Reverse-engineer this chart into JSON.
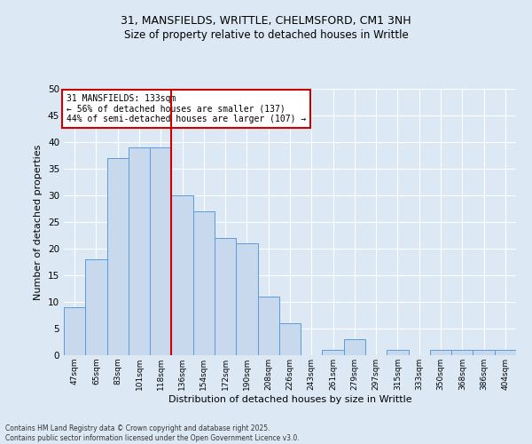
{
  "title_line1": "31, MANSFIELDS, WRITTLE, CHELMSFORD, CM1 3NH",
  "title_line2": "Size of property relative to detached houses in Writtle",
  "xlabel": "Distribution of detached houses by size in Writtle",
  "ylabel": "Number of detached properties",
  "categories": [
    "47sqm",
    "65sqm",
    "83sqm",
    "101sqm",
    "118sqm",
    "136sqm",
    "154sqm",
    "172sqm",
    "190sqm",
    "208sqm",
    "226sqm",
    "243sqm",
    "261sqm",
    "279sqm",
    "297sqm",
    "315sqm",
    "333sqm",
    "350sqm",
    "368sqm",
    "386sqm",
    "404sqm"
  ],
  "values": [
    9,
    18,
    37,
    39,
    39,
    30,
    27,
    22,
    21,
    11,
    6,
    0,
    1,
    3,
    0,
    1,
    0,
    1,
    1,
    1,
    1
  ],
  "bar_color": "#c8d9ed",
  "bar_edge_color": "#5b9bd5",
  "vline_index": 5,
  "vline_color": "#cc0000",
  "annotation_text_line1": "31 MANSFIELDS: 133sqm",
  "annotation_text_line2": "← 56% of detached houses are smaller (137)",
  "annotation_text_line3": "44% of semi-detached houses are larger (107) →",
  "annotation_box_facecolor": "#ffffff",
  "annotation_box_edgecolor": "#cc0000",
  "background_color": "#dce9f5",
  "plot_bg_color": "#dce9f5",
  "grid_color": "#ffffff",
  "ylim": [
    0,
    50
  ],
  "yticks": [
    0,
    5,
    10,
    15,
    20,
    25,
    30,
    35,
    40,
    45,
    50
  ],
  "footnote1": "Contains HM Land Registry data © Crown copyright and database right 2025.",
  "footnote2": "Contains public sector information licensed under the Open Government Licence v3.0."
}
